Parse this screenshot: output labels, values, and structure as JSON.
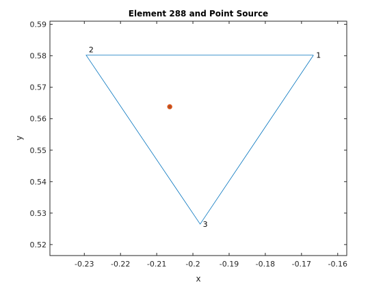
{
  "chart_data": {
    "type": "line",
    "title": "Element 288 and Point Source",
    "xlabel": "x",
    "ylabel": "y",
    "xlim": [
      -0.2395,
      -0.1575
    ],
    "ylim": [
      0.5165,
      0.591
    ],
    "xticks": [
      -0.23,
      -0.22,
      -0.21,
      -0.2,
      -0.19,
      -0.18,
      -0.17,
      -0.16
    ],
    "yticks": [
      0.52,
      0.53,
      0.54,
      0.55,
      0.56,
      0.57,
      0.58,
      0.59
    ],
    "grid": false,
    "series": [
      {
        "type": "line",
        "color": "#0072BD",
        "x": [
          -0.1667,
          -0.2295,
          -0.198,
          -0.1667
        ],
        "y": [
          0.5802,
          0.5802,
          0.5265,
          0.5802
        ]
      },
      {
        "type": "scatter",
        "color": "#D95319",
        "x": [
          -0.2064
        ],
        "y": [
          0.5638
        ]
      }
    ],
    "annotations": [
      {
        "text": "1",
        "x": -0.1667,
        "y": 0.5802
      },
      {
        "text": "2",
        "x": -0.2295,
        "y": 0.5802
      },
      {
        "text": "3",
        "x": -0.198,
        "y": 0.5265
      }
    ]
  }
}
